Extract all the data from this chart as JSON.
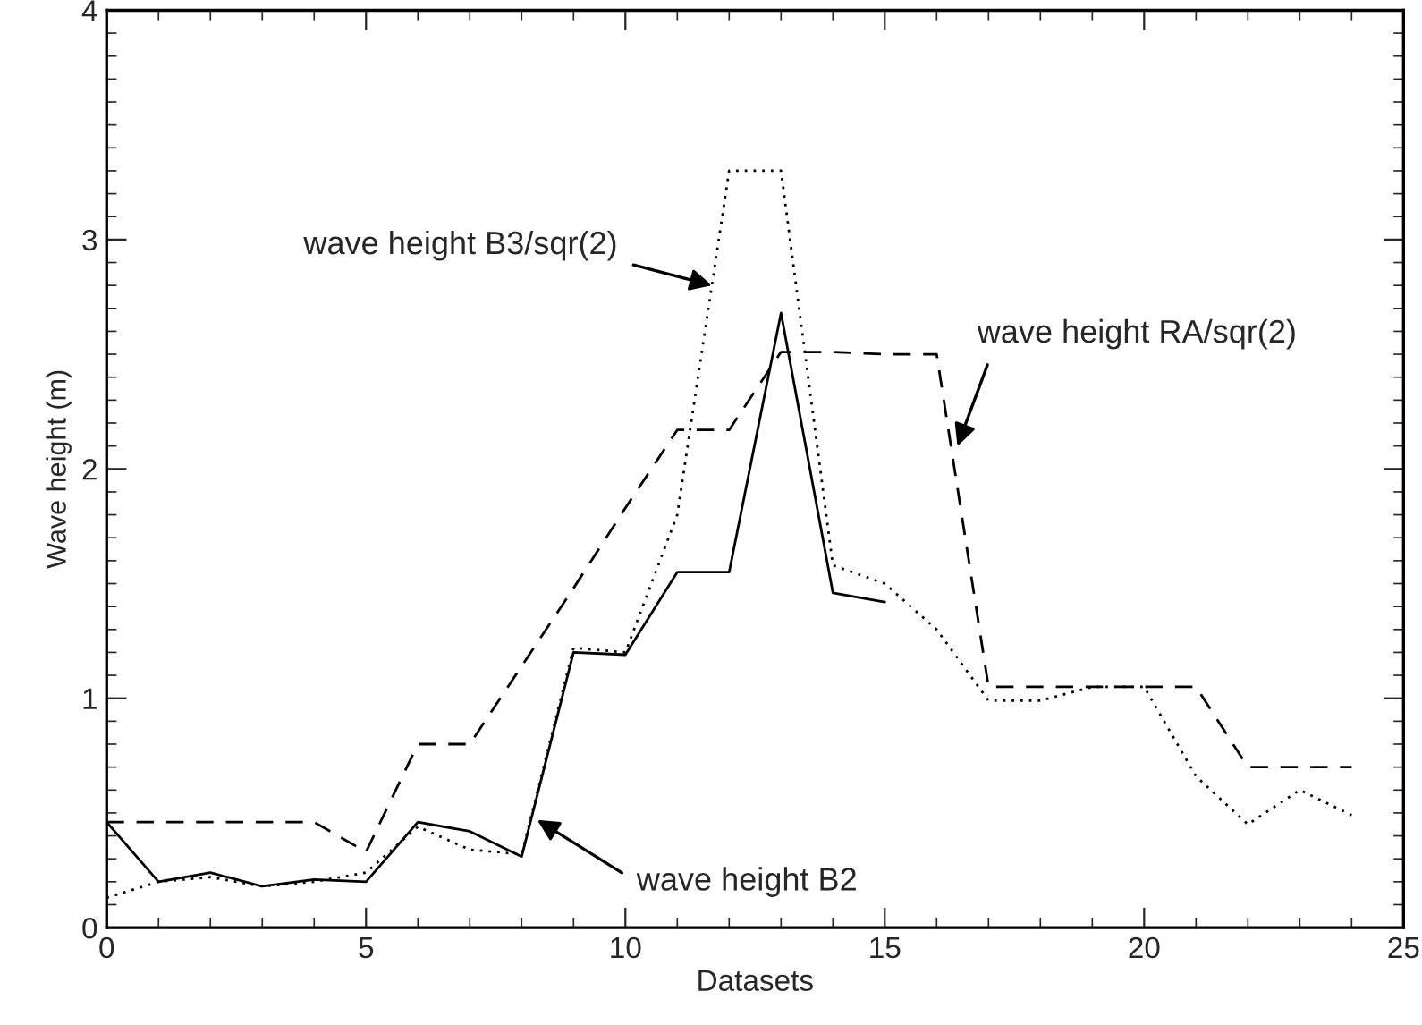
{
  "chart_data": {
    "type": "line",
    "xlabel": "Datasets",
    "ylabel": "Wave height (m)",
    "x": [
      0,
      1,
      2,
      3,
      4,
      5,
      6,
      7,
      8,
      9,
      10,
      11,
      12,
      13,
      14,
      15,
      16,
      17,
      18,
      19,
      20,
      21,
      22,
      23,
      24
    ],
    "series": [
      {
        "color": "#000000",
        "line_style": "solid",
        "values": [
          0.46,
          0.2,
          0.24,
          0.18,
          0.21,
          0.2,
          0.46,
          0.42,
          0.31,
          1.2,
          1.19,
          1.55,
          1.55,
          2.68,
          1.46,
          1.42,
          null,
          null,
          null,
          null,
          null,
          null,
          null,
          null,
          null
        ]
      },
      {
        "color": "#000000",
        "line_style": "dotted",
        "values": [
          0.13,
          0.2,
          0.22,
          0.18,
          0.2,
          0.24,
          0.44,
          0.34,
          0.32,
          1.22,
          1.2,
          1.8,
          3.3,
          3.3,
          1.58,
          1.5,
          1.3,
          0.99,
          0.99,
          1.05,
          1.05,
          0.66,
          0.45,
          0.6,
          0.49
        ]
      },
      {
        "color": "#000000",
        "line_style": "dashed",
        "values": [
          0.46,
          0.46,
          0.46,
          0.46,
          0.46,
          0.33,
          0.8,
          0.8,
          1.14,
          1.48,
          1.83,
          2.17,
          2.17,
          2.51,
          2.51,
          2.5,
          2.5,
          1.05,
          1.05,
          1.05,
          1.05,
          1.05,
          0.7,
          0.7,
          0.7
        ]
      }
    ],
    "annotations": [
      {
        "text": "wave height B3/sqr(2)",
        "x": 11.67,
        "y": 2.8
      },
      {
        "text": "wave height RA/sqr(2)",
        "x": 16.4,
        "y": 2.1
      },
      {
        "text": "wave height B2",
        "x": 8.3,
        "y": 0.47
      }
    ],
    "xlim": [
      0,
      25
    ],
    "ylim": [
      0,
      4
    ],
    "xticks": [
      0,
      5,
      10,
      15,
      20,
      25
    ],
    "yticks": [
      0,
      1,
      2,
      3,
      4
    ],
    "grid": false,
    "legend": false,
    "marker": "none"
  }
}
